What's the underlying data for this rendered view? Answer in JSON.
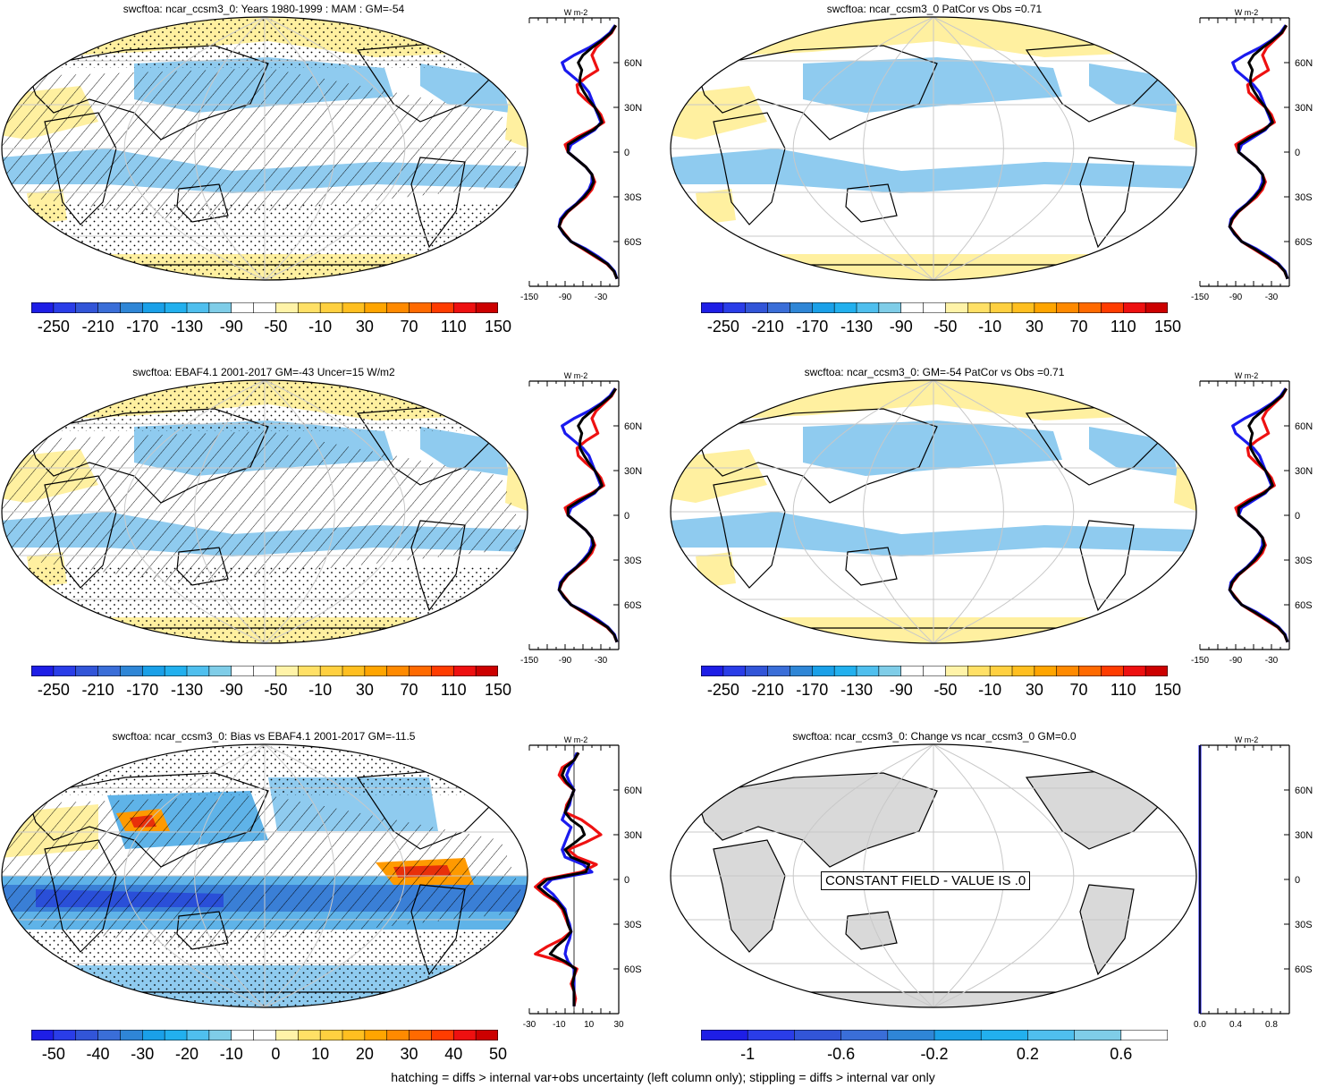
{
  "panels": [
    {
      "id": "p1",
      "title": "swcftoa: ncar_ccsm3_0: Years 1980-1999 : MAM : GM=-54",
      "hatch": true,
      "stipple": true,
      "scheme": "fields"
    },
    {
      "id": "p2",
      "title": "swcftoa: ncar_ccsm3_0 PatCor vs Obs =0.71",
      "hatch": false,
      "stipple": false,
      "scheme": "fields"
    },
    {
      "id": "p3",
      "title": "swcftoa: EBAF4.1 2001-2017 GM=-43 Uncer=15 W/m2",
      "hatch": true,
      "stipple": true,
      "scheme": "fields"
    },
    {
      "id": "p4",
      "title": "swcftoa: ncar_ccsm3_0: GM=-54 PatCor vs Obs =0.71",
      "hatch": false,
      "stipple": false,
      "scheme": "fields"
    },
    {
      "id": "p5",
      "title": "swcftoa: ncar_ccsm3_0: Bias vs EBAF4.1 2001-2017 GM=-11.5",
      "hatch": true,
      "stipple": true,
      "scheme": "bias"
    },
    {
      "id": "p6",
      "title": "swcftoa: ncar_ccsm3_0: Change vs ncar_ccsm3_0 GM=0.0",
      "hatch": false,
      "stipple": false,
      "scheme": "constant"
    }
  ],
  "constant_label": "CONSTANT FIELD - VALUE IS .0",
  "colorbars": {
    "fields": {
      "labels": [
        "-250",
        "-210",
        "-170",
        "-130",
        "-90",
        "-50",
        "-10",
        "30",
        "70",
        "110",
        "150"
      ],
      "colors": [
        "#1e1ee6",
        "#2a3de8",
        "#3255d8",
        "#3a6ed8",
        "#2f86d6",
        "#1aa0e8",
        "#22b0ee",
        "#4fbfee",
        "#7fcde8",
        "#ffffff",
        "#ffffff",
        "#fff3a8",
        "#ffe066",
        "#ffd040",
        "#ffbf20",
        "#ffa500",
        "#ff8a00",
        "#ff6a00",
        "#ff3c00",
        "#ee1010",
        "#cc0000"
      ]
    },
    "bias": {
      "labels": [
        "-50",
        "-40",
        "-30",
        "-20",
        "-10",
        "0",
        "10",
        "20",
        "30",
        "40",
        "50"
      ],
      "colors": [
        "#1e1ee6",
        "#2a3de8",
        "#3255d8",
        "#3a6ed8",
        "#2f86d6",
        "#1aa0e8",
        "#22b0ee",
        "#4fbfee",
        "#7fcde8",
        "#ffffff",
        "#ffffff",
        "#fff3a8",
        "#ffe066",
        "#ffd040",
        "#ffbf20",
        "#ffa500",
        "#ff8a00",
        "#ff6a00",
        "#ff3c00",
        "#ee1010",
        "#cc0000"
      ]
    },
    "change": {
      "labels": [
        "-1",
        "-0.6",
        "-0.2",
        "0.2",
        "0.6"
      ],
      "colors": [
        "#1e1ee6",
        "#2a3de8",
        "#3255d8",
        "#3a6ed8",
        "#2f86d6",
        "#1aa0e8",
        "#22b0ee",
        "#4fbfee",
        "#7fcde8",
        "#ffffff"
      ]
    }
  },
  "profiles": {
    "unit": "W m-2",
    "lat_ticks": [
      "60N",
      "30N",
      "0",
      "30S",
      "60S"
    ],
    "lat_values": [
      60,
      30,
      0,
      -30,
      -60
    ],
    "fields_x_ticks": [
      "-150",
      "-90",
      "-30"
    ],
    "fields_x_values": [
      -150,
      -90,
      -30
    ],
    "fields_xlim": [
      -150,
      0
    ],
    "bias_x_ticks": [
      "-30",
      "-10",
      "10",
      "30"
    ],
    "bias_x_values": [
      -30,
      -10,
      10,
      30
    ],
    "bias_xlim": [
      -30,
      30
    ],
    "change_x_ticks": [
      "0.0",
      "0.4",
      "0.8"
    ],
    "change_x_values": [
      0,
      0.4,
      0.8
    ],
    "change_xlim": [
      0,
      1
    ],
    "series_colors": {
      "model": "#ee1111",
      "obs": "#1a1aee",
      "mean": "#000000"
    },
    "lat": [
      85,
      80,
      75,
      70,
      65,
      60,
      55,
      50,
      45,
      40,
      35,
      30,
      25,
      20,
      15,
      10,
      5,
      0,
      -5,
      -10,
      -15,
      -20,
      -25,
      -30,
      -35,
      -40,
      -45,
      -50,
      -55,
      -60,
      -65,
      -70,
      -75,
      -80,
      -85
    ],
    "fields_model": [
      -5,
      -12,
      -25,
      -38,
      -45,
      -40,
      -35,
      -55,
      -70,
      -68,
      -55,
      -40,
      -30,
      -25,
      -45,
      -70,
      -90,
      -85,
      -70,
      -55,
      -45,
      -40,
      -45,
      -55,
      -70,
      -85,
      -95,
      -100,
      -90,
      -80,
      -60,
      -40,
      -20,
      -8,
      -3
    ],
    "fields_obs": [
      -6,
      -15,
      -30,
      -50,
      -75,
      -95,
      -90,
      -75,
      -60,
      -50,
      -45,
      -40,
      -35,
      -30,
      -40,
      -60,
      -80,
      -85,
      -70,
      -55,
      -45,
      -45,
      -50,
      -60,
      -72,
      -88,
      -98,
      -100,
      -92,
      -80,
      -55,
      -35,
      -18,
      -7,
      -3
    ],
    "fields_mean": [
      -5,
      -13,
      -28,
      -45,
      -60,
      -68,
      -62,
      -65,
      -65,
      -58,
      -50,
      -40,
      -33,
      -28,
      -42,
      -65,
      -85,
      -85,
      -70,
      -55,
      -45,
      -42,
      -48,
      -58,
      -71,
      -86,
      -96,
      -100,
      -91,
      -80,
      -58,
      -38,
      -19,
      -8,
      -3
    ],
    "bias_model": [
      3,
      0,
      -8,
      -10,
      -6,
      0,
      -2,
      -5,
      -6,
      5,
      12,
      18,
      8,
      -4,
      2,
      15,
      5,
      -20,
      -26,
      -20,
      -12,
      -8,
      -6,
      -4,
      -2,
      -8,
      -18,
      -26,
      -8,
      2,
      0,
      -2,
      0,
      1,
      0
    ],
    "bias_obs": [
      2,
      0,
      -3,
      -5,
      -3,
      0,
      -2,
      -3,
      -6,
      -8,
      -2,
      -4,
      -6,
      -8,
      -6,
      6,
      12,
      -15,
      -20,
      -14,
      -10,
      -6,
      -5,
      -3,
      -2,
      -3,
      -5,
      -6,
      -4,
      0,
      0,
      0,
      0,
      0,
      0
    ],
    "bias_mean": [
      3,
      0,
      -6,
      -8,
      -5,
      0,
      -2,
      -4,
      -6,
      -2,
      5,
      7,
      1,
      -6,
      -2,
      10,
      8,
      -18,
      -24,
      -18,
      -11,
      -7,
      -5,
      -4,
      -2,
      -6,
      -12,
      -16,
      -6,
      1,
      0,
      -1,
      0,
      0,
      0
    ]
  },
  "footer": "hatching = diffs > internal var+obs uncertainty (left column only); stippling = diffs > internal var only"
}
